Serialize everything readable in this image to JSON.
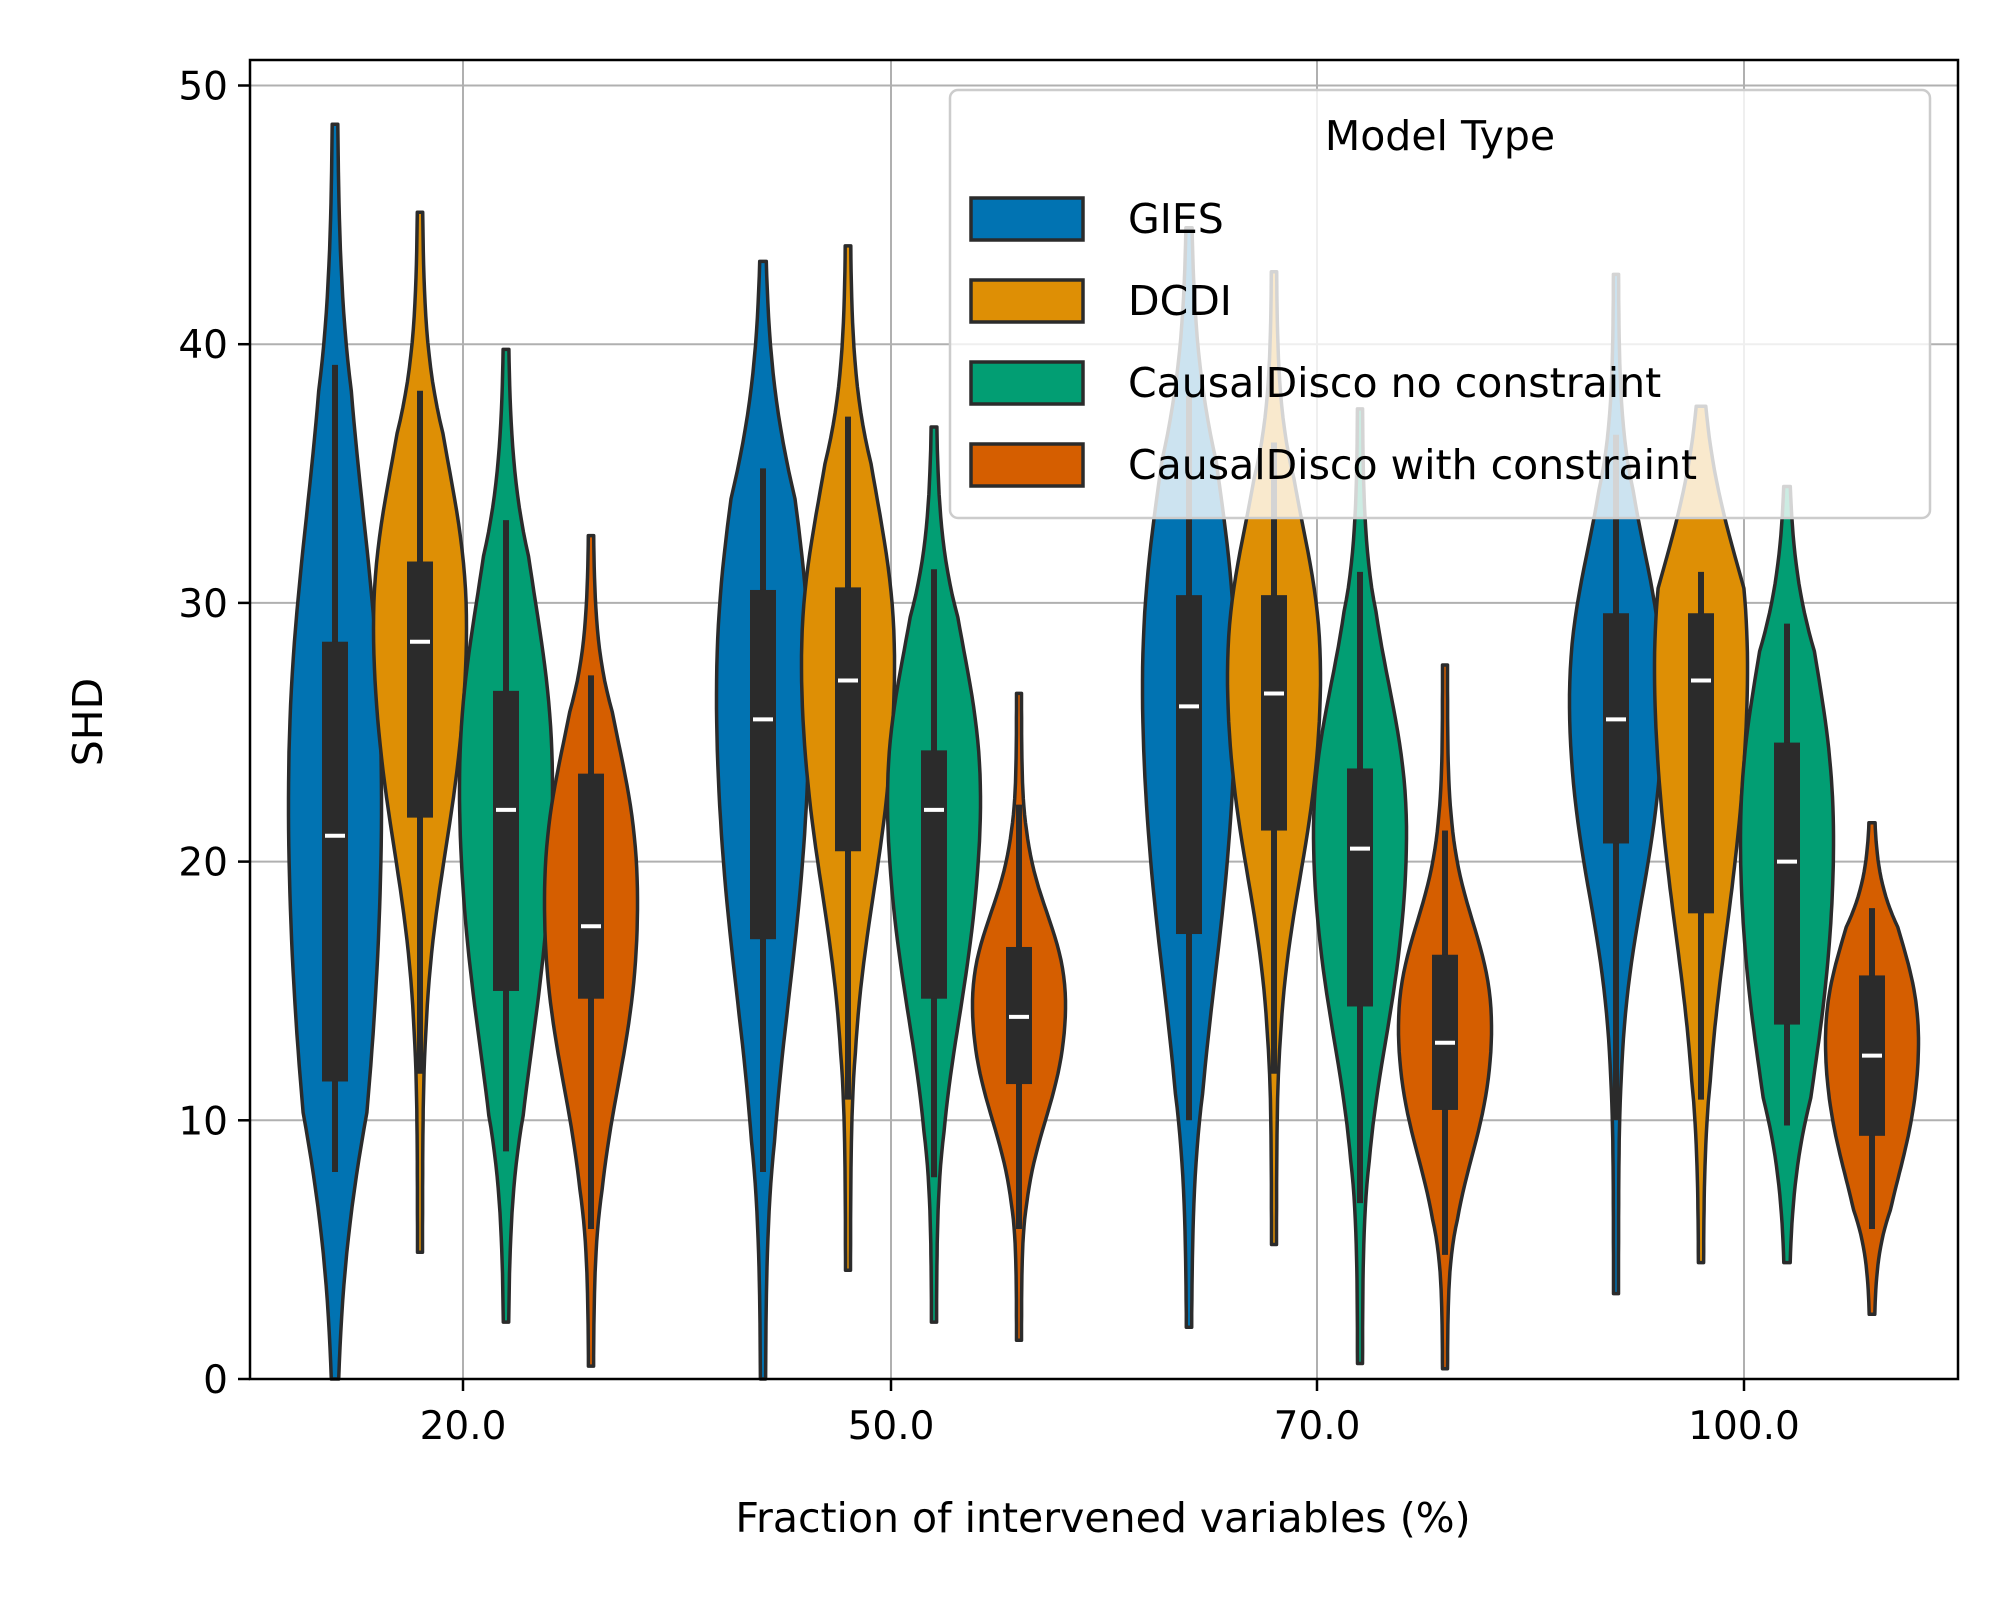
{
  "chart_data": {
    "type": "violin",
    "title": "",
    "xlabel": "Fraction of intervened variables (%)",
    "ylabel": "SHD",
    "categories": [
      "20.0",
      "50.0",
      "70.0",
      "100.0"
    ],
    "ylim": [
      0,
      51
    ],
    "yticks": [
      0,
      10,
      20,
      30,
      40,
      50
    ],
    "grid": true,
    "legend": {
      "title": "Model Type",
      "placement": "top-right"
    },
    "series": [
      {
        "name": "GIES",
        "color": "#0173b2",
        "stats": [
          {
            "min": 0,
            "max": 48.5,
            "q1": 11.5,
            "median": 21,
            "q3": 28.5,
            "whisker_low": 8,
            "whisker_high": 39.2
          },
          {
            "min": 0,
            "max": 43.2,
            "q1": 17,
            "median": 25.5,
            "q3": 30.5,
            "whisker_low": 8,
            "whisker_high": 35.2
          },
          {
            "min": 2,
            "max": 44.5,
            "q1": 17.2,
            "median": 26,
            "q3": 30.3,
            "whisker_low": 10,
            "whisker_high": 38
          },
          {
            "min": 3.3,
            "max": 42.7,
            "q1": 20.7,
            "median": 25.5,
            "q3": 29.6,
            "whisker_low": 10,
            "whisker_high": 36.5
          }
        ]
      },
      {
        "name": "DCDI",
        "color": "#de8f05",
        "stats": [
          {
            "min": 4.9,
            "max": 45.1,
            "q1": 21.7,
            "median": 28.5,
            "q3": 31.6,
            "whisker_low": 11.8,
            "whisker_high": 38.2
          },
          {
            "min": 4.2,
            "max": 43.8,
            "q1": 20.4,
            "median": 27,
            "q3": 30.6,
            "whisker_low": 10.8,
            "whisker_high": 37.2
          },
          {
            "min": 5.2,
            "max": 42.8,
            "q1": 21.2,
            "median": 26.5,
            "q3": 30.3,
            "whisker_low": 11.8,
            "whisker_high": 36.2
          },
          {
            "min": 4.5,
            "max": 37.6,
            "q1": 18,
            "median": 27,
            "q3": 29.6,
            "whisker_low": 10.8,
            "whisker_high": 31.2
          }
        ]
      },
      {
        "name": "CausalDisco no constraint",
        "color": "#029e73",
        "stats": [
          {
            "min": 2.2,
            "max": 39.8,
            "q1": 15,
            "median": 22,
            "q3": 26.6,
            "whisker_low": 8.8,
            "whisker_high": 33.2
          },
          {
            "min": 2.2,
            "max": 36.8,
            "q1": 14.7,
            "median": 22,
            "q3": 24.3,
            "whisker_low": 7.8,
            "whisker_high": 31.3
          },
          {
            "min": 0.6,
            "max": 37.5,
            "q1": 14.4,
            "median": 20.5,
            "q3": 23.6,
            "whisker_low": 6.8,
            "whisker_high": 31.2
          },
          {
            "min": 4.5,
            "max": 34.5,
            "q1": 13.7,
            "median": 20,
            "q3": 24.6,
            "whisker_low": 9.8,
            "whisker_high": 29.2
          }
        ]
      },
      {
        "name": "CausalDisco with constraint",
        "color": "#d55e00",
        "stats": [
          {
            "min": 0.5,
            "max": 32.6,
            "q1": 14.7,
            "median": 17.5,
            "q3": 23.4,
            "whisker_low": 5.8,
            "whisker_high": 27.2
          },
          {
            "min": 1.5,
            "max": 26.5,
            "q1": 11.4,
            "median": 14,
            "q3": 16.7,
            "whisker_low": 5.8,
            "whisker_high": 22.2
          },
          {
            "min": 0.4,
            "max": 27.6,
            "q1": 10.4,
            "median": 13,
            "q3": 16.4,
            "whisker_low": 4.8,
            "whisker_high": 21.2
          },
          {
            "min": 2.5,
            "max": 21.5,
            "q1": 9.4,
            "median": 12.5,
            "q3": 15.6,
            "whisker_low": 5.8,
            "whisker_high": 18.2
          }
        ]
      }
    ]
  }
}
